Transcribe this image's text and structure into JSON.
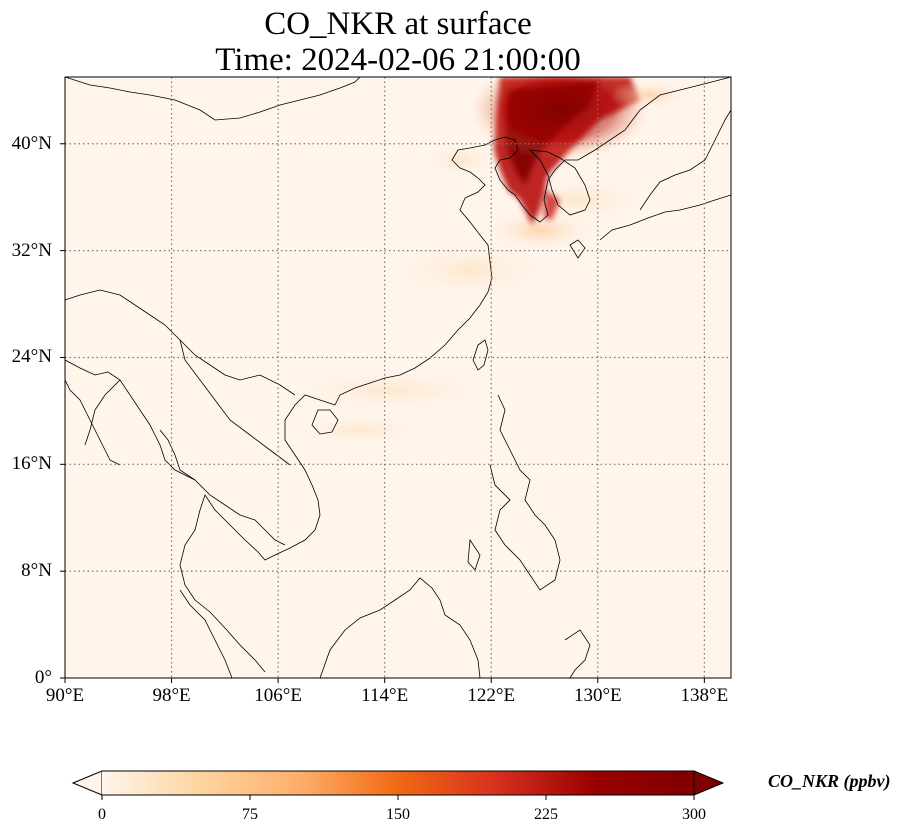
{
  "title": {
    "line1": "CO_NKR at surface",
    "line2": "Time: 2024-02-06 21:00:00"
  },
  "map": {
    "lon_range": [
      90,
      140
    ],
    "lat_range": [
      0,
      45
    ],
    "lat_ticks": [
      {
        "value": 0,
        "label": "0°"
      },
      {
        "value": 8,
        "label": "8°N"
      },
      {
        "value": 16,
        "label": "16°N"
      },
      {
        "value": 24,
        "label": "24°N"
      },
      {
        "value": 32,
        "label": "32°N"
      },
      {
        "value": 40,
        "label": "40°N"
      }
    ],
    "lon_ticks": [
      {
        "value": 90,
        "label": "90°E"
      },
      {
        "value": 98,
        "label": "98°E"
      },
      {
        "value": 106,
        "label": "106°E"
      },
      {
        "value": 114,
        "label": "114°E"
      },
      {
        "value": 122,
        "label": "122°E"
      },
      {
        "value": 130,
        "label": "130°E"
      },
      {
        "value": 138,
        "label": "138°E"
      }
    ],
    "gridlines": true
  },
  "colorbar": {
    "label": "CO_NKR (ppbv)",
    "min": 0,
    "max": 300,
    "ticks": [
      {
        "value": 0,
        "label": "0"
      },
      {
        "value": 75,
        "label": "75"
      },
      {
        "value": 150,
        "label": "150"
      },
      {
        "value": 225,
        "label": "225"
      },
      {
        "value": 300,
        "label": "300"
      }
    ],
    "colors": [
      "#fff5eb",
      "#fdd49e",
      "#fdae6b",
      "#f16913",
      "#d7301f",
      "#990000",
      "#7f0000"
    ],
    "extend": "both"
  }
}
